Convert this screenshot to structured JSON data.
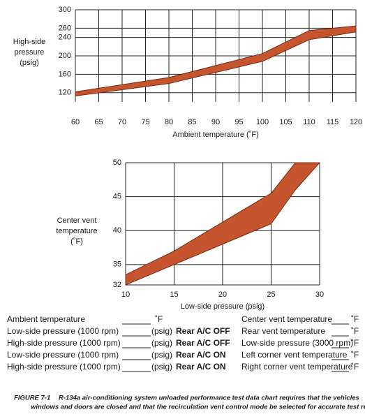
{
  "chart_data": [
    {
      "type": "band",
      "y_label": [
        "High-side",
        "pressure",
        "(psig)"
      ],
      "x_label": "Ambient temperature (˚F)",
      "color": "#c4552f",
      "grid": true,
      "x": [
        60,
        80,
        100,
        110,
        120
      ],
      "high": [
        122,
        153,
        205,
        255,
        265
      ],
      "low": [
        113,
        140,
        188,
        235,
        252
      ],
      "xlim": [
        60,
        120
      ],
      "ylim": [
        100,
        300
      ],
      "xticks": [
        60,
        65,
        70,
        75,
        80,
        85,
        90,
        95,
        100,
        105,
        110,
        115,
        120
      ],
      "yticks": [
        120,
        160,
        200,
        240,
        260,
        300
      ]
    },
    {
      "type": "band",
      "y_label": [
        "Center vent",
        "temperature",
        "(˚F)"
      ],
      "x_label": "Low-side pressure (psig)",
      "color": "#c4552f",
      "grid": true,
      "x": [
        10,
        15,
        25,
        27.5,
        30
      ],
      "high": [
        33.5,
        37,
        45.5,
        50,
        50
      ],
      "low": [
        32,
        35,
        41,
        46,
        50
      ],
      "xlim": [
        10,
        30
      ],
      "ylim": [
        32,
        50
      ],
      "xticks": [
        10,
        15,
        20,
        25,
        30
      ],
      "yticks": [
        32,
        35,
        40,
        45,
        50
      ]
    }
  ],
  "form": {
    "rows": [
      {
        "item": "Ambient temperature",
        "unit": "˚F",
        "right": "Center vent temperature",
        "right_unit": "˚F"
      },
      {
        "item": "Low-side pressure  (1000 rpm)",
        "unit": "(psig)",
        "mode": "Rear A/C OFF",
        "right": "Rear vent temperature",
        "right_unit": "˚F"
      },
      {
        "item": "High-side pressure (1000 rpm)",
        "unit": "(psig)",
        "mode": "Rear A/C OFF",
        "right": "Low-side pressure (3000 rpm)",
        "right_unit": "˚F"
      },
      {
        "item": "Low-side pressure  (1000 rpm)",
        "unit": "(psig)",
        "mode": "Rear A/C ON",
        "right": "Left corner vent temperature",
        "right_unit": "˚F"
      },
      {
        "item": "High-side pressure (1000 rpm)",
        "unit": "(psig)",
        "mode": "Rear A/C ON",
        "right": "Right corner vent temperature",
        "right_unit": "˚F"
      }
    ]
  },
  "figure": {
    "label": "FIGURE 7-1",
    "caption": [
      "R-134a air-conditioning system unloaded performance test data chart requires that the vehicles",
      "windows and doors are closed and that the recirculation vent control mode be selected for accurate test results."
    ]
  }
}
